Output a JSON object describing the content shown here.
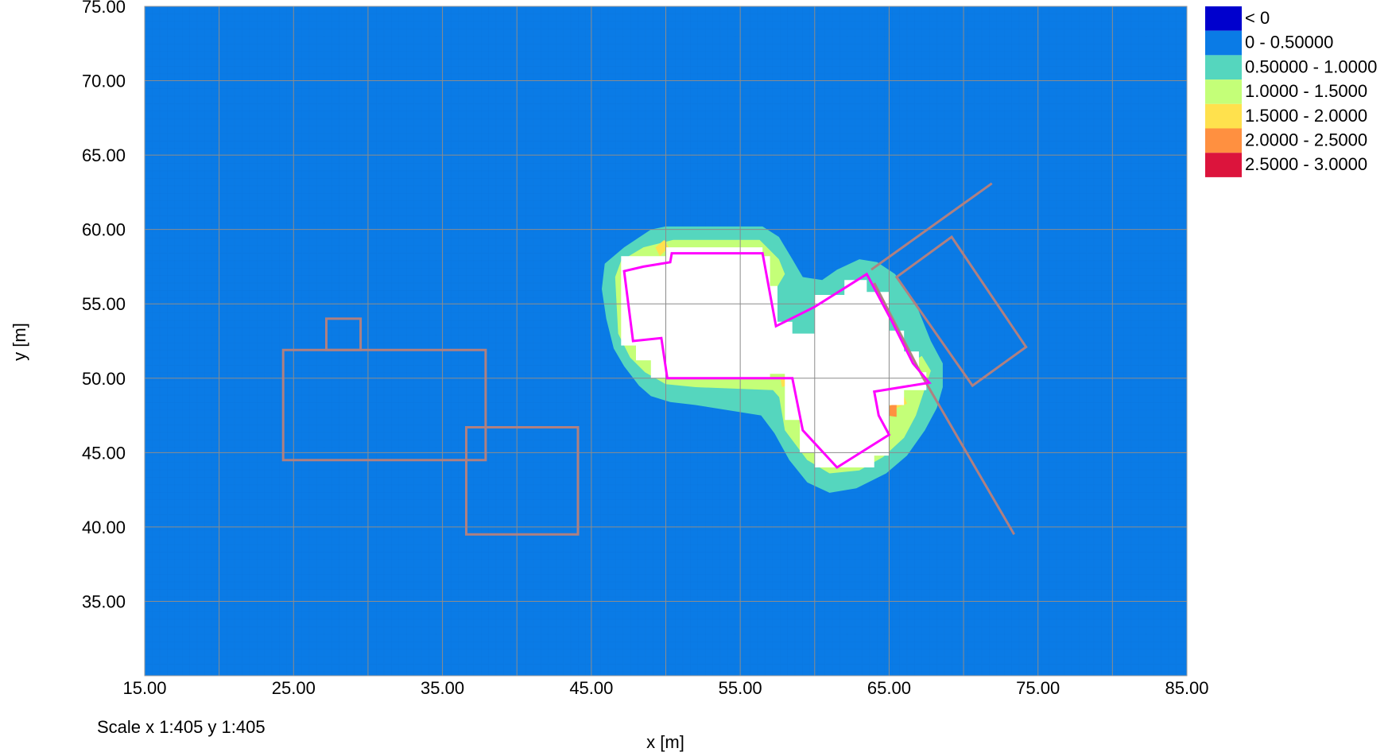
{
  "chart_data": {
    "type": "heatmap",
    "xlabel": "x [m]",
    "ylabel": "y [m]",
    "xlim": [
      15,
      85
    ],
    "ylim": [
      30,
      75
    ],
    "x_ticks": [
      "15.00",
      "25.00",
      "35.00",
      "45.00",
      "55.00",
      "65.00",
      "75.00",
      "85.00"
    ],
    "y_ticks": [
      "35.00",
      "40.00",
      "45.00",
      "50.00",
      "55.00",
      "60.00",
      "65.00",
      "70.00",
      "75.00"
    ],
    "scale_note": "Scale x 1:405  y 1:405",
    "background_level_color": "#0A7BE6",
    "legend": [
      {
        "label": "< 0",
        "color": "#0000CD"
      },
      {
        "label": "0 - 0.50000",
        "color": "#0A7BE6"
      },
      {
        "label": "0.50000 - 1.0000",
        "color": "#55D6BE"
      },
      {
        "label": "1.0000 - 1.5000",
        "color": "#C4FF78"
      },
      {
        "label": "1.5000 - 2.0000",
        "color": "#FFE14D"
      },
      {
        "label": "2.0000 - 2.5000",
        "color": "#FF9040"
      },
      {
        "label": "2.5000 - 3.0000",
        "color": "#DC143C"
      }
    ],
    "contour_bands": [
      {
        "color": "#55D6BE",
        "points": [
          [
            45.7,
            56.0
          ],
          [
            45.9,
            57.7
          ],
          [
            47.2,
            58.8
          ],
          [
            49.0,
            60.0
          ],
          [
            50.0,
            60.2
          ],
          [
            56.5,
            60.2
          ],
          [
            57.6,
            59.5
          ],
          [
            58.5,
            58.0
          ],
          [
            59.2,
            56.8
          ],
          [
            60.5,
            56.6
          ],
          [
            61.5,
            57.3
          ],
          [
            63.0,
            58.0
          ],
          [
            64.2,
            57.8
          ],
          [
            65.4,
            57.0
          ],
          [
            66.8,
            55.0
          ],
          [
            67.8,
            52.5
          ],
          [
            68.6,
            51.0
          ],
          [
            68.6,
            49.4
          ],
          [
            68.2,
            48.0
          ],
          [
            67.4,
            46.5
          ],
          [
            66.2,
            44.8
          ],
          [
            64.8,
            43.6
          ],
          [
            62.8,
            42.6
          ],
          [
            61.0,
            42.3
          ],
          [
            59.5,
            43.0
          ],
          [
            58.3,
            44.5
          ],
          [
            57.3,
            46.3
          ],
          [
            56.4,
            47.5
          ],
          [
            52.0,
            48.2
          ],
          [
            50.3,
            48.4
          ],
          [
            49.0,
            48.8
          ],
          [
            48.2,
            49.5
          ],
          [
            47.2,
            50.8
          ],
          [
            46.5,
            52.0
          ],
          [
            46.0,
            54.0
          ]
        ]
      },
      {
        "color": "#C4FF78",
        "points": [
          [
            46.6,
            56.8
          ],
          [
            47.0,
            57.9
          ],
          [
            48.5,
            58.8
          ],
          [
            50.5,
            59.3
          ],
          [
            56.3,
            59.3
          ],
          [
            57.6,
            58.0
          ],
          [
            58.0,
            57.0
          ],
          [
            57.4,
            56.0
          ],
          [
            57.2,
            54.0
          ],
          [
            57.8,
            53.0
          ],
          [
            59.0,
            51.0
          ],
          [
            59.8,
            48.5
          ],
          [
            58.7,
            47.3
          ],
          [
            58.0,
            48.3
          ],
          [
            57.2,
            49.2
          ],
          [
            52.0,
            49.4
          ],
          [
            50.0,
            49.6
          ],
          [
            48.6,
            50.4
          ],
          [
            47.6,
            51.4
          ],
          [
            46.8,
            53.0
          ]
        ]
      },
      {
        "color": "#C4FF78",
        "points": [
          [
            57.4,
            50.0
          ],
          [
            58.0,
            46.5
          ],
          [
            59.5,
            44.5
          ],
          [
            61.0,
            43.6
          ],
          [
            63.0,
            43.8
          ],
          [
            64.6,
            44.7
          ],
          [
            66.0,
            46.0
          ],
          [
            66.8,
            47.5
          ],
          [
            67.3,
            49.0
          ],
          [
            67.8,
            50.5
          ],
          [
            67.2,
            51.5
          ],
          [
            65.5,
            50.5
          ],
          [
            63.5,
            50.0
          ],
          [
            61.0,
            49.8
          ],
          [
            59.5,
            50.3
          ]
        ]
      },
      {
        "color": "#FFE14D",
        "points": [
          [
            64.7,
            48.3
          ],
          [
            65.5,
            48.0
          ],
          [
            66.2,
            48.3
          ],
          [
            65.9,
            49.0
          ],
          [
            65.0,
            49.0
          ]
        ]
      },
      {
        "color": "#FF9040",
        "points": [
          [
            64.8,
            47.5
          ],
          [
            65.5,
            47.4
          ],
          [
            65.5,
            48.3
          ],
          [
            64.9,
            48.1
          ]
        ]
      },
      {
        "color": "#FFE14D",
        "points": [
          [
            49.6,
            58.2
          ],
          [
            50.2,
            58.8
          ],
          [
            49.9,
            59.3
          ],
          [
            49.3,
            58.8
          ]
        ]
      },
      {
        "color": "#FFE14D",
        "points": [
          [
            57.8,
            49.4
          ],
          [
            58.6,
            49.7
          ],
          [
            58.4,
            50.3
          ],
          [
            57.7,
            50.0
          ]
        ]
      }
    ],
    "white_regions": [
      {
        "points": [
          [
            47.0,
            58.2
          ],
          [
            50.0,
            58.2
          ],
          [
            50.0,
            58.8
          ],
          [
            56.5,
            58.8
          ],
          [
            56.5,
            58.2
          ],
          [
            57.0,
            58.2
          ],
          [
            57.0,
            56.2
          ],
          [
            57.5,
            56.2
          ],
          [
            57.5,
            53.8
          ],
          [
            58.5,
            53.8
          ],
          [
            58.5,
            53.0
          ],
          [
            60.0,
            53.0
          ],
          [
            60.0,
            55.6
          ],
          [
            62.0,
            55.6
          ],
          [
            62.0,
            56.6
          ],
          [
            63.5,
            56.6
          ],
          [
            63.5,
            55.8
          ],
          [
            65.0,
            55.8
          ],
          [
            65.0,
            53.2
          ],
          [
            66.0,
            53.2
          ],
          [
            66.0,
            51.8
          ],
          [
            67.0,
            51.8
          ],
          [
            67.0,
            50.4
          ],
          [
            67.5,
            50.4
          ],
          [
            67.5,
            49.2
          ],
          [
            66.0,
            49.2
          ],
          [
            66.0,
            48.2
          ],
          [
            65.0,
            48.2
          ],
          [
            65.0,
            44.8
          ],
          [
            64.0,
            44.8
          ],
          [
            64.0,
            44.0
          ],
          [
            60.0,
            44.0
          ],
          [
            60.0,
            45.0
          ],
          [
            59.0,
            45.0
          ],
          [
            59.0,
            47.2
          ],
          [
            58.0,
            47.2
          ],
          [
            58.0,
            50.3
          ],
          [
            57.0,
            50.3
          ],
          [
            57.0,
            50.0
          ],
          [
            50.0,
            50.0
          ],
          [
            49.0,
            50.0
          ],
          [
            49.0,
            51.2
          ],
          [
            48.0,
            51.2
          ],
          [
            48.0,
            52.2
          ],
          [
            47.0,
            52.2
          ]
        ]
      }
    ],
    "outlines": [
      {
        "color": "#B08080",
        "width": 3,
        "closed": true,
        "points": [
          [
            24.3,
            44.5
          ],
          [
            37.9,
            44.5
          ],
          [
            37.9,
            51.9
          ],
          [
            24.3,
            51.9
          ]
        ]
      },
      {
        "color": "#B08080",
        "width": 3,
        "closed": true,
        "points": [
          [
            27.2,
            51.9
          ],
          [
            29.5,
            51.9
          ],
          [
            29.5,
            54.0
          ],
          [
            27.2,
            54.0
          ]
        ]
      },
      {
        "color": "#B08080",
        "width": 3,
        "closed": true,
        "points": [
          [
            36.6,
            39.5
          ],
          [
            44.1,
            39.5
          ],
          [
            44.1,
            46.7
          ],
          [
            36.6,
            46.7
          ]
        ]
      },
      {
        "color": "#B08080",
        "width": 3,
        "closed": true,
        "points": [
          [
            65.5,
            56.8
          ],
          [
            69.2,
            59.5
          ],
          [
            74.2,
            52.1
          ],
          [
            70.6,
            49.5
          ]
        ]
      },
      {
        "color": "#B08080",
        "width": 3,
        "closed": false,
        "points": [
          [
            63.8,
            57.3
          ],
          [
            71.9,
            63.1
          ]
        ]
      },
      {
        "color": "#B08080",
        "width": 3,
        "closed": false,
        "points": [
          [
            64.0,
            56.4
          ],
          [
            67.3,
            50.0
          ],
          [
            73.4,
            39.5
          ]
        ]
      },
      {
        "color": "#FF00FF",
        "width": 3,
        "closed": true,
        "points": [
          [
            47.2,
            57.2
          ],
          [
            48.5,
            57.5
          ],
          [
            50.3,
            57.8
          ],
          [
            50.4,
            58.4
          ],
          [
            53.5,
            58.4
          ],
          [
            56.5,
            58.4
          ],
          [
            57.4,
            53.5
          ],
          [
            60.0,
            54.8
          ],
          [
            63.5,
            57.0
          ],
          [
            65.2,
            53.8
          ],
          [
            66.6,
            51.0
          ],
          [
            67.7,
            49.7
          ],
          [
            64.0,
            49.1
          ],
          [
            64.3,
            47.5
          ],
          [
            65.0,
            46.2
          ],
          [
            61.5,
            44.0
          ],
          [
            59.2,
            46.5
          ],
          [
            58.5,
            50.0
          ],
          [
            50.1,
            50.0
          ],
          [
            49.7,
            52.7
          ],
          [
            47.8,
            52.5
          ]
        ]
      }
    ]
  }
}
